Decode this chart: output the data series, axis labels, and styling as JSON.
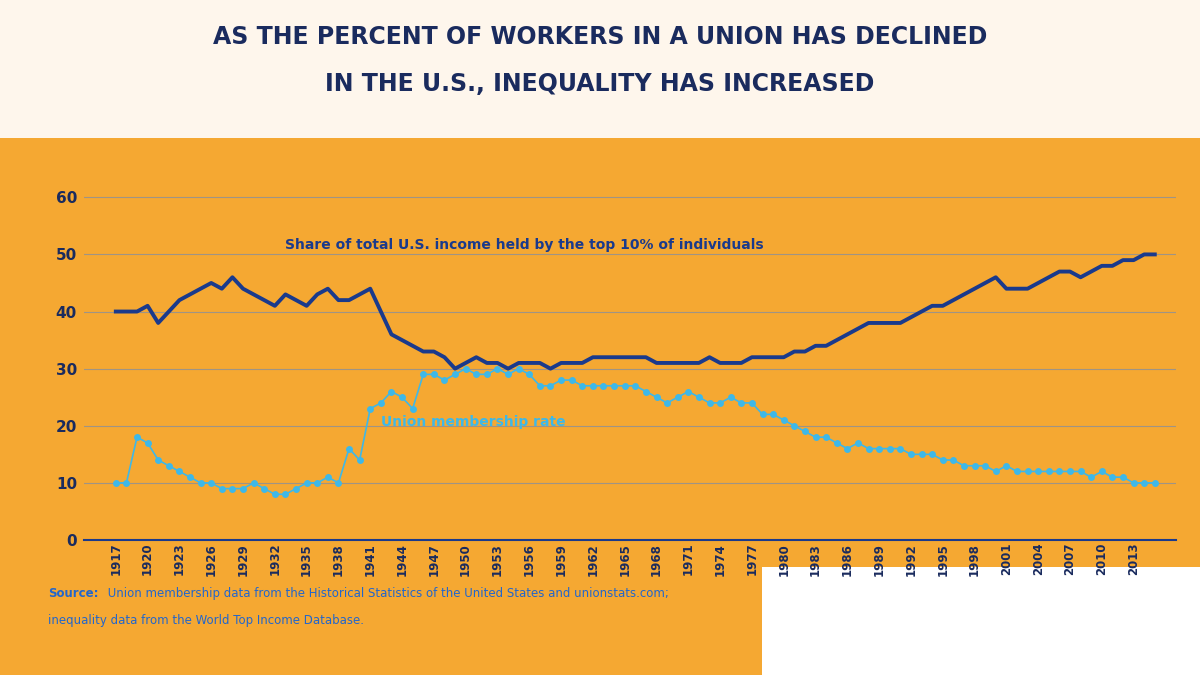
{
  "title_line1": "AS THE PERCENT OF WORKERS IN A UNION HAS DECLINED",
  "title_line2": "IN THE U.S., INEQUALITY HAS INCREASED",
  "bg_color_top": "#FEF6EC",
  "bg_color_bottom": "#F5A832",
  "title_color": "#1a2b5e",
  "axis_label_color": "#1a2b5e",
  "grid_color": "#6688bb",
  "inequality_color": "#1a3a8c",
  "union_color": "#3eb8e8",
  "source_bold": "Source:",
  "source_line1": " Union membership data from the Historical Statistics of the United States and unionstats.com;",
  "source_line2": "inequality data from the World Top Income Database.",
  "source_color": "#2266cc",
  "inequality_label": "Share of total U.S. income held by the top 10% of individuals",
  "union_label": "Union membership rate",
  "ylim": [
    0,
    65
  ],
  "yticks": [
    0,
    10,
    20,
    30,
    40,
    50,
    60
  ],
  "xlim": [
    1914,
    2017
  ],
  "inequality_years": [
    1917,
    1918,
    1919,
    1920,
    1921,
    1922,
    1923,
    1924,
    1925,
    1926,
    1927,
    1928,
    1929,
    1930,
    1931,
    1932,
    1933,
    1934,
    1935,
    1936,
    1937,
    1938,
    1939,
    1940,
    1941,
    1942,
    1943,
    1944,
    1945,
    1946,
    1947,
    1948,
    1949,
    1950,
    1951,
    1952,
    1953,
    1954,
    1955,
    1956,
    1957,
    1958,
    1959,
    1960,
    1961,
    1962,
    1963,
    1964,
    1965,
    1966,
    1967,
    1968,
    1969,
    1970,
    1971,
    1972,
    1973,
    1974,
    1975,
    1976,
    1977,
    1978,
    1979,
    1980,
    1981,
    1982,
    1983,
    1984,
    1985,
    1986,
    1987,
    1988,
    1989,
    1990,
    1991,
    1992,
    1993,
    1994,
    1995,
    1996,
    1997,
    1998,
    1999,
    2000,
    2001,
    2002,
    2003,
    2004,
    2005,
    2006,
    2007,
    2008,
    2009,
    2010,
    2011,
    2012,
    2013,
    2014,
    2015
  ],
  "inequality_values": [
    40,
    40,
    40,
    41,
    38,
    40,
    42,
    43,
    44,
    45,
    44,
    46,
    44,
    43,
    42,
    41,
    43,
    42,
    41,
    43,
    44,
    42,
    42,
    43,
    44,
    40,
    36,
    35,
    34,
    33,
    33,
    32,
    30,
    31,
    32,
    31,
    31,
    30,
    31,
    31,
    31,
    30,
    31,
    31,
    31,
    32,
    32,
    32,
    32,
    32,
    32,
    31,
    31,
    31,
    31,
    31,
    32,
    31,
    31,
    31,
    32,
    32,
    32,
    32,
    33,
    33,
    34,
    34,
    35,
    36,
    37,
    38,
    38,
    38,
    38,
    39,
    40,
    41,
    41,
    42,
    43,
    44,
    45,
    46,
    44,
    44,
    44,
    45,
    46,
    47,
    47,
    46,
    47,
    48,
    48,
    49,
    49,
    50,
    50
  ],
  "union_years": [
    1917,
    1918,
    1919,
    1920,
    1921,
    1922,
    1923,
    1924,
    1925,
    1926,
    1927,
    1928,
    1929,
    1930,
    1931,
    1932,
    1933,
    1934,
    1935,
    1936,
    1937,
    1938,
    1939,
    1940,
    1941,
    1942,
    1943,
    1944,
    1945,
    1946,
    1947,
    1948,
    1949,
    1950,
    1951,
    1952,
    1953,
    1954,
    1955,
    1956,
    1957,
    1958,
    1959,
    1960,
    1961,
    1962,
    1963,
    1964,
    1965,
    1966,
    1967,
    1968,
    1969,
    1970,
    1971,
    1972,
    1973,
    1974,
    1975,
    1976,
    1977,
    1978,
    1979,
    1980,
    1981,
    1982,
    1983,
    1984,
    1985,
    1986,
    1987,
    1988,
    1989,
    1990,
    1991,
    1992,
    1993,
    1994,
    1995,
    1996,
    1997,
    1998,
    1999,
    2000,
    2001,
    2002,
    2003,
    2004,
    2005,
    2006,
    2007,
    2008,
    2009,
    2010,
    2011,
    2012,
    2013,
    2014,
    2015
  ],
  "union_values": [
    10,
    10,
    18,
    17,
    14,
    13,
    12,
    11,
    10,
    10,
    9,
    9,
    9,
    10,
    9,
    8,
    8,
    9,
    10,
    10,
    11,
    10,
    16,
    14,
    23,
    24,
    26,
    25,
    23,
    29,
    29,
    28,
    29,
    30,
    29,
    29,
    30,
    29,
    30,
    29,
    27,
    27,
    28,
    28,
    27,
    27,
    27,
    27,
    27,
    27,
    26,
    25,
    24,
    25,
    26,
    25,
    24,
    24,
    25,
    24,
    24,
    22,
    22,
    21,
    20,
    19,
    18,
    18,
    17,
    16,
    17,
    16,
    16,
    16,
    16,
    15,
    15,
    15,
    14,
    14,
    13,
    13,
    13,
    12,
    13,
    12,
    12,
    12,
    12,
    12,
    12,
    12,
    11,
    12,
    11,
    11,
    10,
    10,
    10
  ]
}
